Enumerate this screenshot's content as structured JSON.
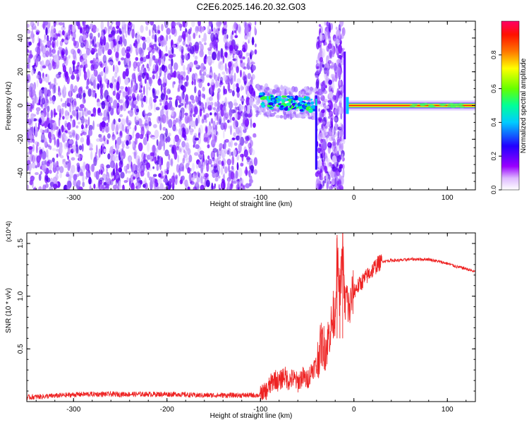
{
  "figure": {
    "title": "C2E6.2025.146.20.32.G03"
  },
  "chart_data": [
    {
      "type": "heatmap",
      "title": "C2E6.2025.146.20.32.G03",
      "xlabel": "Height of straight line (km)",
      "ylabel": "Frequency (Hz)",
      "xlim": [
        -350,
        130
      ],
      "ylim": [
        -50,
        50
      ],
      "x_ticks": [
        -300,
        -200,
        -100,
        0,
        100
      ],
      "y_ticks": [
        -40,
        -20,
        0,
        20,
        40
      ],
      "colorbar": {
        "label": "Normalized spectral amplitude",
        "range": [
          0,
          1
        ],
        "ticks": [
          0.0,
          0.2,
          0.4,
          0.6,
          0.8
        ],
        "tick_labels": [
          "0.0",
          "0.2",
          "0.4",
          "0.6",
          "0.8"
        ],
        "colors": [
          "#ffffff",
          "#9900ff",
          "#2200ff",
          "#00ffff",
          "#00ff66",
          "#ffff00",
          "#ff5500",
          "#ff0066"
        ]
      },
      "regions": [
        {
          "description": "broadband noise",
          "x_range": [
            -350,
            -105
          ],
          "y_range": [
            -50,
            50
          ],
          "amplitude": 0.15
        },
        {
          "description": "meteor-band",
          "x_range": [
            -105,
            -40
          ],
          "y_center": 3,
          "amplitude": 0.55
        },
        {
          "description": "broadband noise",
          "x_range": [
            -40,
            -10
          ],
          "y_range": [
            -50,
            50
          ],
          "amplitude": 0.18
        },
        {
          "description": "carrier",
          "x_range": [
            0,
            130
          ],
          "y_center": 0,
          "amplitude": 1.0
        }
      ],
      "grid": false
    },
    {
      "type": "line",
      "xlabel": "Height of straight line (km)",
      "ylabel": "SNR (10 * v/v)",
      "y_multiplier": "(x10^4)",
      "xlim": [
        -350,
        130
      ],
      "ylim": [
        0,
        1.6
      ],
      "x_ticks": [
        -300,
        -200,
        -100,
        0,
        100
      ],
      "y_ticks": [
        0.5,
        1.0,
        1.5
      ],
      "y_tick_labels": [
        "0.5",
        "1.0",
        "1.5"
      ],
      "series": [
        {
          "color": "#ee2222",
          "x": [
            -350,
            -330,
            -310,
            -290,
            -270,
            -250,
            -230,
            -210,
            -190,
            -170,
            -150,
            -130,
            -110,
            -100,
            -95,
            -90,
            -85,
            -80,
            -75,
            -70,
            -65,
            -60,
            -55,
            -50,
            -45,
            -40,
            -35,
            -30,
            -25,
            -20,
            -18,
            -15,
            -12,
            -10,
            -8,
            -5,
            -2,
            0,
            5,
            10,
            15,
            20,
            25,
            30,
            40,
            50,
            60,
            70,
            80,
            90,
            100,
            110,
            120,
            130
          ],
          "y": [
            0.04,
            0.05,
            0.06,
            0.07,
            0.07,
            0.07,
            0.07,
            0.07,
            0.07,
            0.06,
            0.06,
            0.06,
            0.06,
            0.06,
            0.08,
            0.15,
            0.22,
            0.18,
            0.25,
            0.2,
            0.22,
            0.18,
            0.24,
            0.2,
            0.3,
            0.35,
            0.55,
            0.5,
            0.7,
            0.85,
            1.4,
            0.95,
            1.5,
            0.9,
            1.0,
            0.85,
            1.0,
            1.05,
            1.1,
            1.15,
            1.2,
            1.25,
            1.3,
            1.33,
            1.34,
            1.34,
            1.35,
            1.35,
            1.35,
            1.33,
            1.31,
            1.28,
            1.26,
            1.23
          ]
        }
      ],
      "grid": false
    }
  ]
}
